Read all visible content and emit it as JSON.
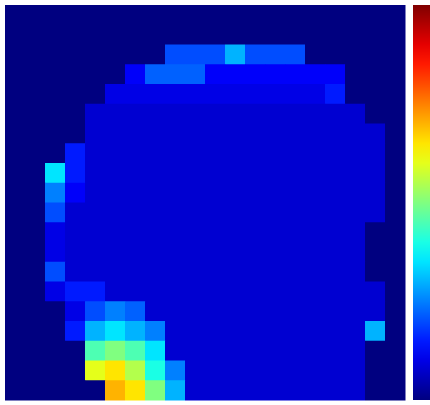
{
  "chart_data": {
    "type": "heatmap",
    "colormap": "jet",
    "zlim": [
      0,
      1
    ],
    "values": [
      [
        0,
        0,
        0,
        0,
        0,
        0,
        0,
        0,
        0,
        0,
        0,
        0,
        0,
        0,
        0,
        0,
        0,
        0,
        0,
        0
      ],
      [
        0,
        0,
        0,
        0,
        0,
        0,
        0,
        0,
        0,
        0,
        0,
        0,
        0,
        0,
        0,
        0,
        0,
        0,
        0,
        0
      ],
      [
        0,
        0,
        0,
        0,
        0,
        0,
        0,
        0,
        0.2,
        0.2,
        0.2,
        0.3,
        0.2,
        0.2,
        0.2,
        0,
        0,
        0,
        0,
        0
      ],
      [
        0,
        0,
        0,
        0,
        0,
        0,
        0.12,
        0.22,
        0.22,
        0.22,
        0.12,
        0.12,
        0.12,
        0.12,
        0.12,
        0.12,
        0.12,
        0,
        0,
        0
      ],
      [
        0,
        0,
        0,
        0,
        0,
        0.1,
        0.1,
        0.1,
        0.1,
        0.1,
        0.1,
        0.1,
        0.1,
        0.1,
        0.1,
        0.1,
        0.15,
        0,
        0,
        0
      ],
      [
        0,
        0,
        0,
        0,
        0.08,
        0.08,
        0.08,
        0.08,
        0.08,
        0.08,
        0.08,
        0.08,
        0.08,
        0.08,
        0.08,
        0.08,
        0.08,
        0.08,
        0,
        0
      ],
      [
        0,
        0,
        0,
        0,
        0.08,
        0.08,
        0.08,
        0.08,
        0.08,
        0.08,
        0.08,
        0.08,
        0.08,
        0.08,
        0.08,
        0.08,
        0.08,
        0.08,
        0.08,
        0
      ],
      [
        0,
        0,
        0,
        0.15,
        0.08,
        0.08,
        0.08,
        0.08,
        0.08,
        0.08,
        0.08,
        0.08,
        0.08,
        0.08,
        0.08,
        0.08,
        0.08,
        0.08,
        0.08,
        0
      ],
      [
        0,
        0,
        0.35,
        0.15,
        0.08,
        0.08,
        0.08,
        0.08,
        0.08,
        0.08,
        0.08,
        0.08,
        0.08,
        0.08,
        0.08,
        0.08,
        0.08,
        0.08,
        0.08,
        0
      ],
      [
        0,
        0,
        0.25,
        0.12,
        0.08,
        0.08,
        0.08,
        0.08,
        0.08,
        0.08,
        0.08,
        0.08,
        0.08,
        0.08,
        0.08,
        0.08,
        0.08,
        0.08,
        0.08,
        0
      ],
      [
        0,
        0,
        0.2,
        0.08,
        0.08,
        0.08,
        0.08,
        0.08,
        0.08,
        0.08,
        0.08,
        0.08,
        0.08,
        0.08,
        0.08,
        0.08,
        0.08,
        0.08,
        0.08,
        0
      ],
      [
        0,
        0,
        0.1,
        0.08,
        0.08,
        0.08,
        0.08,
        0.08,
        0.08,
        0.08,
        0.08,
        0.08,
        0.08,
        0.08,
        0.08,
        0.08,
        0.08,
        0.08,
        0,
        0
      ],
      [
        0,
        0,
        0.1,
        0.08,
        0.08,
        0.08,
        0.08,
        0.08,
        0.08,
        0.08,
        0.08,
        0.08,
        0.08,
        0.08,
        0.08,
        0.08,
        0.08,
        0.08,
        0,
        0
      ],
      [
        0,
        0,
        0.2,
        0.08,
        0.08,
        0.08,
        0.08,
        0.08,
        0.08,
        0.08,
        0.08,
        0.08,
        0.08,
        0.08,
        0.08,
        0.08,
        0.08,
        0.08,
        0,
        0
      ],
      [
        0,
        0,
        0.1,
        0.15,
        0.15,
        0.08,
        0.08,
        0.08,
        0.08,
        0.08,
        0.08,
        0.08,
        0.08,
        0.08,
        0.08,
        0.08,
        0.08,
        0.08,
        0.08,
        0
      ],
      [
        0,
        0,
        0,
        0.1,
        0.2,
        0.25,
        0.22,
        0.08,
        0.08,
        0.08,
        0.08,
        0.08,
        0.08,
        0.08,
        0.08,
        0.08,
        0.08,
        0.08,
        0.08,
        0
      ],
      [
        0,
        0,
        0,
        0.15,
        0.3,
        0.35,
        0.3,
        0.25,
        0.08,
        0.08,
        0.08,
        0.08,
        0.08,
        0.08,
        0.08,
        0.08,
        0.08,
        0.08,
        0.3,
        0
      ],
      [
        0,
        0,
        0,
        0,
        0.45,
        0.5,
        0.45,
        0.35,
        0.08,
        0.08,
        0.08,
        0.08,
        0.08,
        0.08,
        0.08,
        0.08,
        0.08,
        0.08,
        0,
        0
      ],
      [
        0,
        0,
        0,
        0,
        0.6,
        0.65,
        0.55,
        0.4,
        0.25,
        0.08,
        0.08,
        0.08,
        0.08,
        0.08,
        0.08,
        0.08,
        0.08,
        0.08,
        0,
        0
      ],
      [
        0,
        0,
        0,
        0,
        0,
        0.7,
        0.65,
        0.5,
        0.3,
        0.08,
        0.08,
        0.08,
        0.08,
        0.08,
        0.08,
        0.08,
        0.08,
        0.08,
        0,
        0
      ]
    ]
  }
}
